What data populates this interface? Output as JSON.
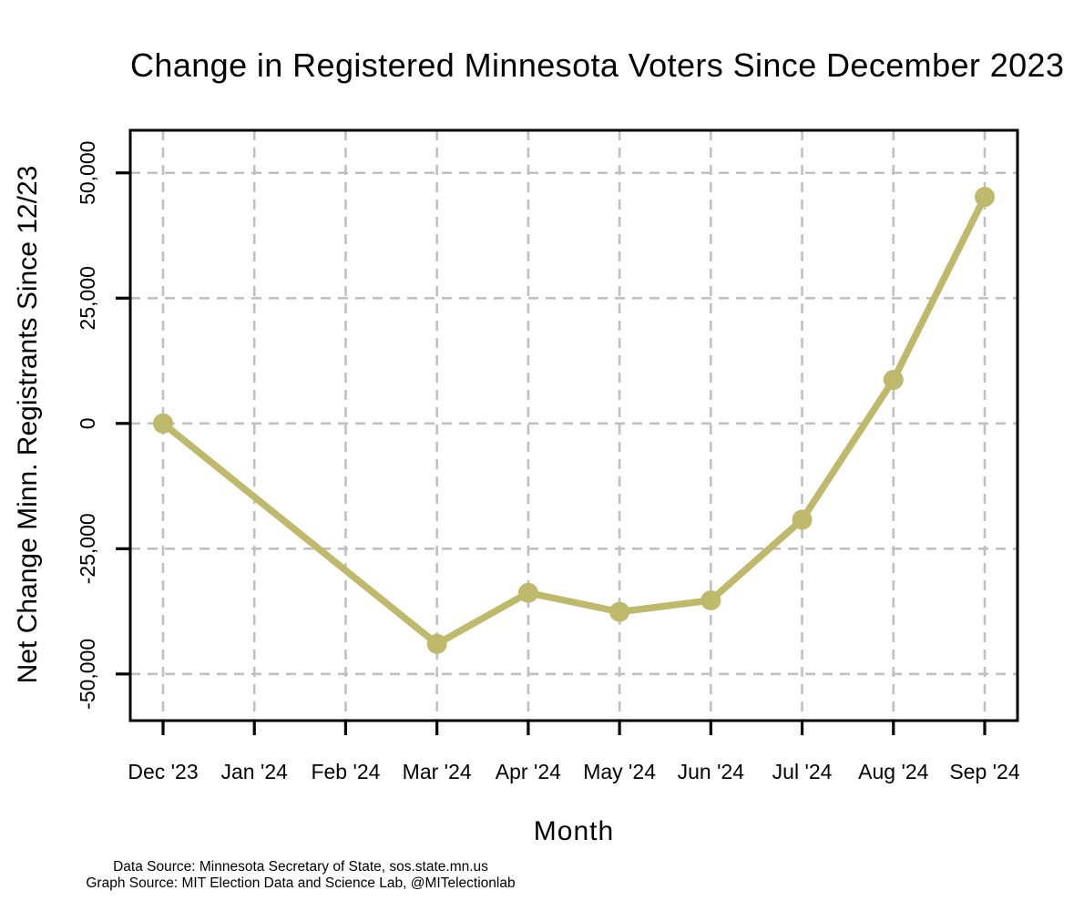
{
  "figure": {
    "background": "#FFFFFF",
    "text_color": "#000000"
  },
  "chart_data": {
    "type": "line",
    "title": "Change in Registered Minnesota Voters Since December 2023",
    "xlabel": "Month",
    "ylabel": "Net Change Minn. Registrants Since 12/23",
    "categories": [
      "Dec '23",
      "Jan '24",
      "Feb '24",
      "Mar '24",
      "Apr '24",
      "May '24",
      "Jun '24",
      "Jul '24",
      "Aug '24",
      "Sep '24"
    ],
    "series": [
      {
        "name": "net-change-registrants",
        "values": [
          0,
          null,
          null,
          -44000,
          -33800,
          -37600,
          -35300,
          -19200,
          8700,
          45200
        ]
      }
    ],
    "ylim": [
      -59300,
      58500
    ],
    "yticks": {
      "values": [
        -50000,
        -25000,
        0,
        25000,
        50000
      ],
      "labels": [
        "-50,000",
        "-25,000",
        "0",
        "25,000",
        "50,000"
      ]
    },
    "grid": true,
    "grid_style": "dashed",
    "legend": "none",
    "line_color": "#BFB96B",
    "marker": "filled-circle",
    "grid_color": "#C0C0C0",
    "axis_color": "#000000"
  },
  "footnotes": [
    "Data Source: Minnesota Secretary of State, sos.state.mn.us",
    "Graph Source: MIT Election Data and Science Lab, @MITelectionlab"
  ]
}
